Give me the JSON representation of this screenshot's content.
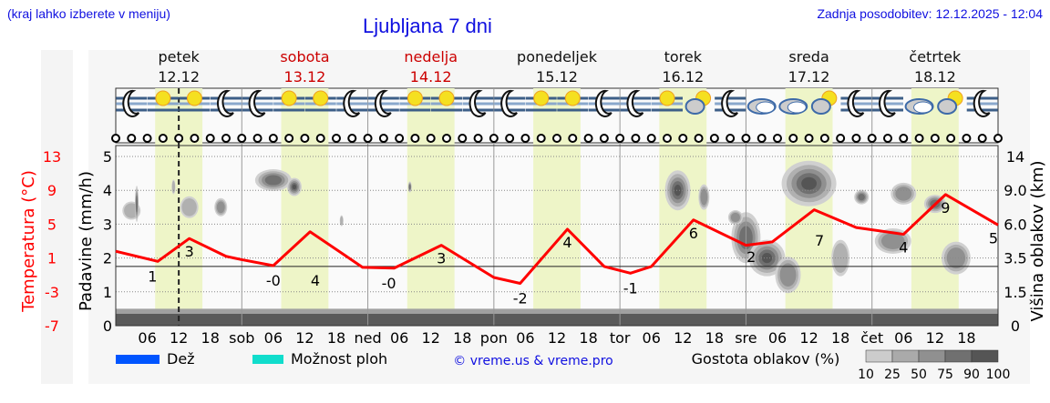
{
  "header": {
    "hint": "(kraj lahko izberete v meniju)",
    "title": "Ljubljana 7 dni",
    "updated": "Zadnja posodobitev: 12.12.2025 - 12:04"
  },
  "colors": {
    "title": "#1010e0",
    "temperature": "#ff0000",
    "weekend": "#cc0000",
    "daylight": "#eef5c8",
    "rain": "#0055ff",
    "showers": "#11ddcc"
  },
  "legend": {
    "rain": "Dež",
    "showers": "Možnost ploh",
    "credit": "© vreme.us & vreme.pro",
    "cloud_density": "Gostota oblakov (%)",
    "cloud_scale": [
      "10",
      "25",
      "50",
      "75",
      "90",
      "100"
    ]
  },
  "chart_data": {
    "type": "line",
    "days": [
      {
        "name": "petek",
        "date": "12.12",
        "weekend": false,
        "abbr": ""
      },
      {
        "name": "sobota",
        "date": "13.12",
        "weekend": true,
        "abbr": "sob"
      },
      {
        "name": "nedelja",
        "date": "14.12",
        "weekend": true,
        "abbr": "ned"
      },
      {
        "name": "ponedeljek",
        "date": "15.12",
        "weekend": false,
        "abbr": "pon"
      },
      {
        "name": "torek",
        "date": "16.12",
        "weekend": false,
        "abbr": "tor"
      },
      {
        "name": "sreda",
        "date": "17.12",
        "weekend": false,
        "abbr": "sre"
      },
      {
        "name": "četrtek",
        "date": "18.12",
        "weekend": false,
        "abbr": "čet"
      }
    ],
    "hour_ticks": [
      "06",
      "12",
      "18"
    ],
    "now_hour": 12,
    "y_left_temperature": {
      "label": "Temperatura (°C)",
      "ticks": [
        "13",
        "9",
        "5",
        "1",
        "-3",
        "-7"
      ],
      "range": [
        -7,
        13
      ]
    },
    "y_left_precip": {
      "label": "Padavine (mm/h)",
      "ticks": [
        "5",
        "4",
        "3",
        "2",
        "1",
        "0"
      ],
      "range": [
        0,
        5
      ]
    },
    "y_right": {
      "label": "Višina oblakov (km)",
      "ticks": [
        "14",
        "9.0",
        "6.0",
        "3.5",
        "1.5",
        "0"
      ]
    },
    "temperature_series": {
      "hours": [
        0,
        8,
        14,
        21,
        24,
        30,
        37,
        47,
        53,
        62,
        72,
        77,
        86,
        93,
        98,
        102,
        110,
        120,
        125,
        133,
        141,
        150,
        158,
        168
      ],
      "values": [
        1.8,
        0.6,
        3.3,
        1.2,
        0.8,
        0.1,
        4.1,
        -0.1,
        -0.2,
        2.5,
        -1.3,
        -2.0,
        4.4,
        0,
        -0.8,
        0,
        5.5,
        2.5,
        2.9,
        6.7,
        4.6,
        3.8,
        8.5,
        4.9
      ]
    },
    "temperature_labels": [
      {
        "hour": 7,
        "text": "1"
      },
      {
        "hour": 14,
        "text": "3"
      },
      {
        "hour": 30,
        "text": "-0"
      },
      {
        "hour": 38,
        "text": "4"
      },
      {
        "hour": 52,
        "text": "-0"
      },
      {
        "hour": 62,
        "text": "3"
      },
      {
        "hour": 77,
        "text": "-2"
      },
      {
        "hour": 86,
        "text": "4"
      },
      {
        "hour": 98,
        "text": "-1"
      },
      {
        "hour": 110,
        "text": "6"
      },
      {
        "hour": 121,
        "text": "2"
      },
      {
        "hour": 134,
        "text": "7"
      },
      {
        "hour": 150,
        "text": "4"
      },
      {
        "hour": 158,
        "text": "9"
      },
      {
        "hour": 168,
        "text": "5"
      }
    ],
    "precipitation": [],
    "weather_icons": [
      "moon-fog",
      "sun-fog",
      "sun-fog",
      "moon-fog",
      "moon-fog",
      "sun-fog",
      "sun-fog",
      "moon-fog",
      "moon-fog",
      "sun-fog",
      "sun-fog",
      "moon-fog",
      "moon-fog",
      "sun-fog",
      "sun-fog",
      "moon-fog",
      "moon-fog",
      "sun-fog",
      "sun-cloud",
      "moon-fog",
      "cloud",
      "cloud",
      "sun-cloud",
      "moon-fog",
      "moon-fog",
      "cloud",
      "sun-cloud",
      "moon-fog"
    ],
    "grid": true
  }
}
